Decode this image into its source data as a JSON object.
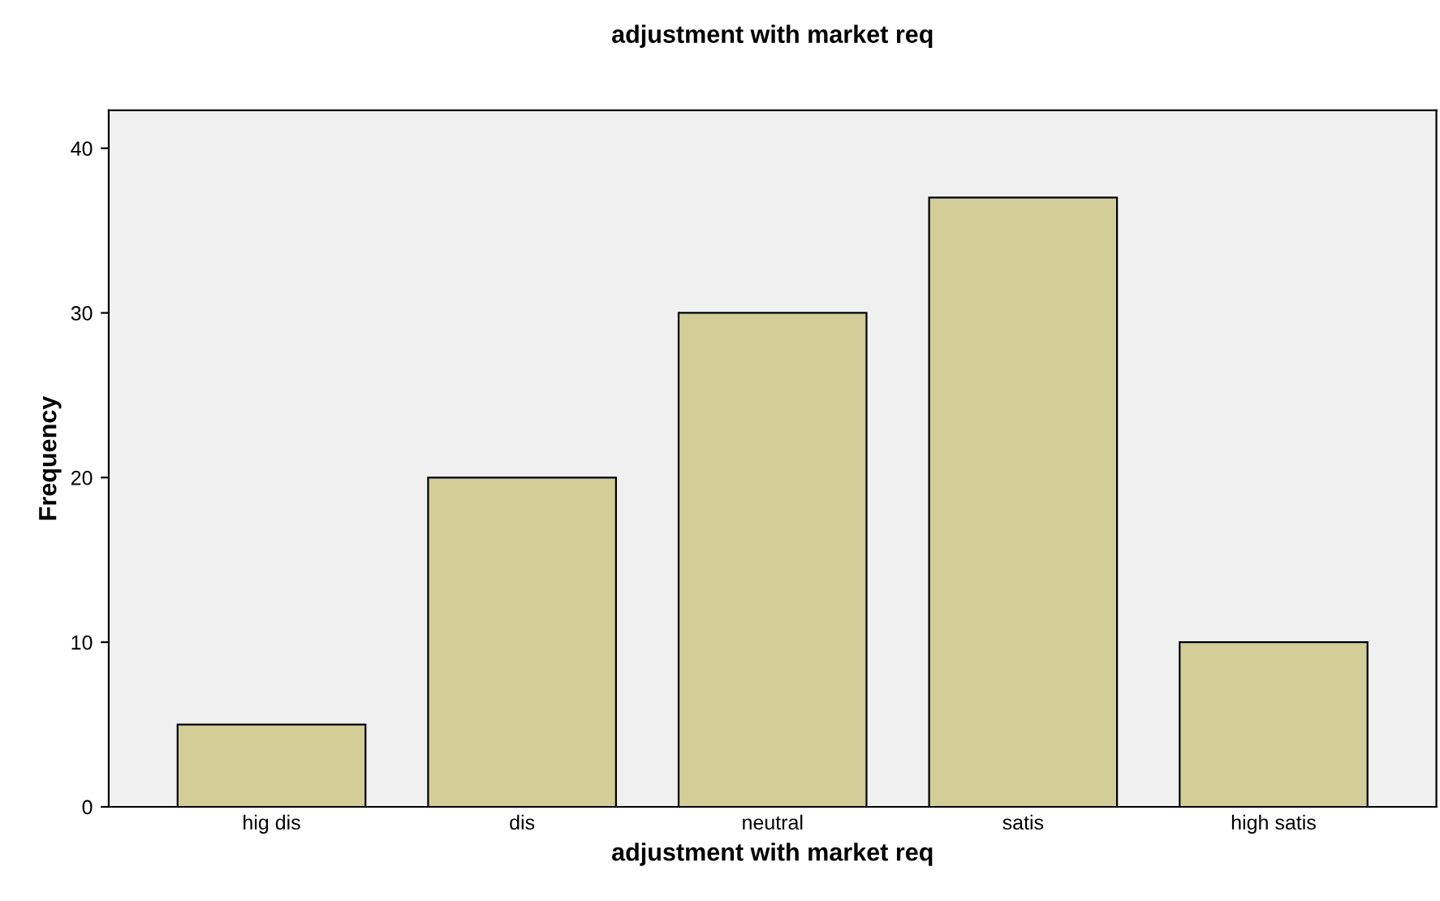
{
  "chart_data": {
    "type": "bar",
    "title": "adjustment with market req",
    "xlabel": "adjustment with market req",
    "ylabel": "Frequency",
    "categories": [
      "hig dis",
      "dis",
      "neutral",
      "satis",
      "high satis"
    ],
    "values": [
      5,
      20,
      30,
      37,
      10
    ],
    "color": "#d3ce97",
    "ylim": [
      0,
      42.3
    ],
    "yticks": [
      0,
      10,
      20,
      30,
      40
    ],
    "grid": false,
    "legend": false
  }
}
